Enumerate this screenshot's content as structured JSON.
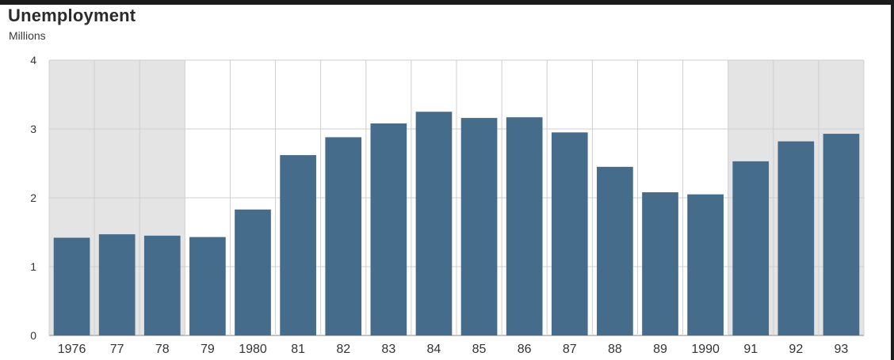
{
  "chart_data": {
    "type": "bar",
    "title": "Unemployment",
    "subtitle": "Millions",
    "categories": [
      "1976",
      "77",
      "78",
      "79",
      "1980",
      "81",
      "82",
      "83",
      "84",
      "85",
      "86",
      "87",
      "88",
      "89",
      "1990",
      "91",
      "92",
      "93"
    ],
    "values": [
      1.42,
      1.47,
      1.45,
      1.43,
      1.83,
      2.62,
      2.88,
      3.08,
      3.25,
      3.16,
      3.17,
      2.95,
      2.45,
      2.08,
      2.05,
      2.53,
      2.82,
      2.93
    ],
    "ylim": [
      0,
      4
    ],
    "yticks": [
      0,
      1,
      2,
      3,
      4
    ],
    "shaded_categories": [
      "1976",
      "77",
      "78",
      "91",
      "92",
      "93"
    ],
    "grid": true,
    "colors": {
      "bar": "#466c8c",
      "shade": "#e4e4e4",
      "grid": "#cfcfcf",
      "axis": "#8a8a8a"
    }
  }
}
